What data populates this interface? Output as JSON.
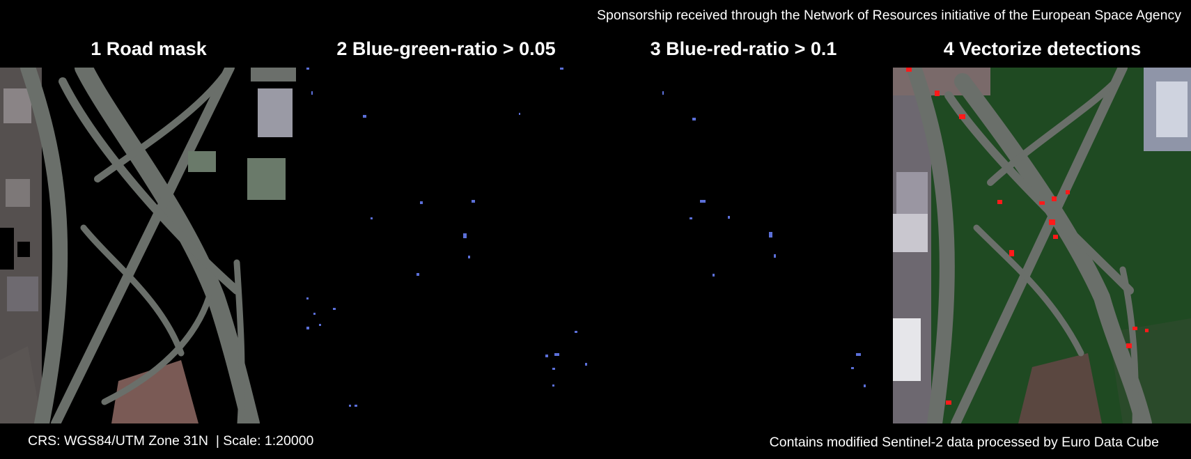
{
  "header": {
    "sponsor_text": "Sponsorship received through the Network of Resources initiative of the European Space Agency"
  },
  "panels": [
    {
      "title": "1 Road mask"
    },
    {
      "title": "2 Blue-green-ratio > 0.05"
    },
    {
      "title": "3 Blue-red-ratio > 0.1"
    },
    {
      "title": "4 Vectorize detections"
    }
  ],
  "footer": {
    "crs_text": "CRS: WGS84/UTM Zone 31N  | Scale: 1:20000",
    "attribution": "Contains modified Sentinel-2 data processed by Euro Data Cube"
  },
  "colors": {
    "background": "#000000",
    "road": "#6a6f6a",
    "vegetation": "#1f4a22",
    "detection_pixel": "#5b6fd8",
    "vectorized_detection": "#ff1a1a"
  }
}
